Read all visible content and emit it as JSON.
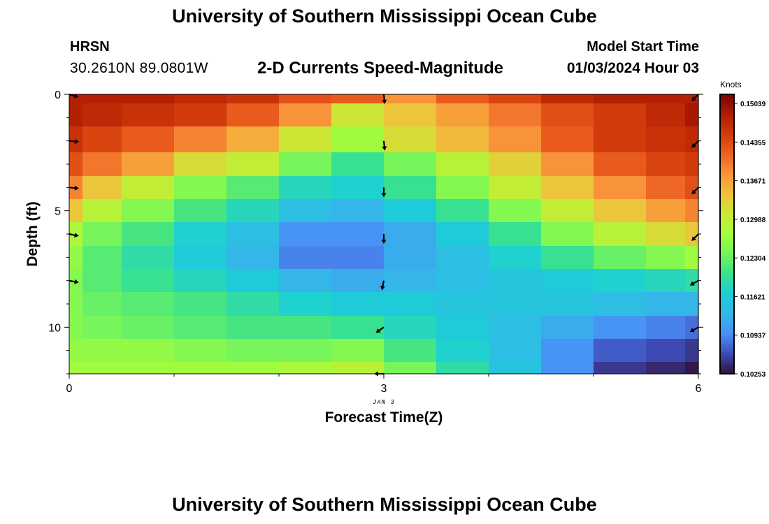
{
  "header": {
    "title": "University of Southern Mississippi Ocean Cube",
    "station": "HRSN",
    "coordinates": "30.2610N  89.0801W",
    "subtitle": "2-D Currents Speed-Magnitude",
    "model_start_label": "Model Start Time",
    "model_start_value": "01/03/2024 Hour 03"
  },
  "footer": {
    "title": "University of Southern Mississippi Ocean Cube"
  },
  "chart_data": {
    "type": "heatmap",
    "title": "2-D Currents Speed-Magnitude",
    "xlabel": "Forecast Time(Z)",
    "ylabel": "Depth (ft)",
    "x_ticks": [
      "0",
      "3",
      "6"
    ],
    "x_tick_values": [
      0,
      3,
      6
    ],
    "x_sublabel": "JAN 3",
    "y_ticks": [
      "0",
      "5",
      "10"
    ],
    "y_tick_values": [
      0,
      5,
      10
    ],
    "xlim": [
      0,
      6
    ],
    "ylim": [
      0,
      12
    ],
    "colorbar": {
      "label": "Knots",
      "min": 0.10253,
      "max": 0.152,
      "ticks": [
        "0.15039",
        "0.14355",
        "0.13671",
        "0.12988",
        "0.12304",
        "0.11621",
        "0.10937",
        "0.10253"
      ],
      "tick_values": [
        0.15039,
        0.14355,
        0.13671,
        0.12988,
        0.12304,
        0.11621,
        0.10937,
        0.10253
      ]
    },
    "colormap": [
      "#30123b",
      "#3e4ab5",
      "#4a8ff7",
      "#33b8e8",
      "#1ccfd6",
      "#3ae18d",
      "#74f45c",
      "#a4fc3c",
      "#cbe835",
      "#efc23a",
      "#f9953a",
      "#ed6121",
      "#d23b0a",
      "#b01c03",
      "#7a0403"
    ],
    "x_centers": [
      0,
      0.25,
      0.75,
      1.25,
      1.75,
      2.25,
      2.75,
      3.25,
      3.75,
      4.25,
      4.75,
      5.25,
      5.75,
      6
    ],
    "depth_centers": [
      0,
      0.75,
      2,
      3,
      4,
      5,
      6,
      7,
      8,
      9,
      10,
      11,
      12
    ],
    "values": [
      [
        0.148,
        0.148,
        0.148,
        0.147,
        0.146,
        0.143,
        0.142,
        0.138,
        0.142,
        0.144,
        0.147,
        0.148,
        0.148,
        0.148
      ],
      [
        0.148,
        0.147,
        0.146,
        0.145,
        0.142,
        0.138,
        0.131,
        0.134,
        0.137,
        0.14,
        0.143,
        0.145,
        0.147,
        0.149
      ],
      [
        0.146,
        0.144,
        0.142,
        0.139,
        0.136,
        0.131,
        0.127,
        0.132,
        0.135,
        0.138,
        0.142,
        0.145,
        0.146,
        0.147
      ],
      [
        0.143,
        0.14,
        0.137,
        0.132,
        0.13,
        0.124,
        0.12,
        0.124,
        0.129,
        0.133,
        0.138,
        0.142,
        0.144,
        0.145
      ],
      [
        0.139,
        0.134,
        0.13,
        0.125,
        0.122,
        0.118,
        0.117,
        0.12,
        0.125,
        0.13,
        0.134,
        0.138,
        0.141,
        0.143
      ],
      [
        0.134,
        0.129,
        0.125,
        0.121,
        0.118,
        0.114,
        0.113,
        0.116,
        0.12,
        0.125,
        0.13,
        0.134,
        0.137,
        0.139
      ],
      [
        0.128,
        0.124,
        0.121,
        0.117,
        0.114,
        0.11,
        0.11,
        0.112,
        0.116,
        0.12,
        0.125,
        0.129,
        0.132,
        0.134
      ],
      [
        0.126,
        0.122,
        0.119,
        0.116,
        0.113,
        0.109,
        0.109,
        0.112,
        0.114,
        0.117,
        0.12,
        0.123,
        0.125,
        0.127
      ],
      [
        0.125,
        0.122,
        0.12,
        0.118,
        0.116,
        0.113,
        0.112,
        0.113,
        0.114,
        0.115,
        0.116,
        0.117,
        0.118,
        0.119
      ],
      [
        0.125,
        0.123,
        0.122,
        0.121,
        0.119,
        0.117,
        0.116,
        0.116,
        0.115,
        0.115,
        0.115,
        0.114,
        0.113,
        0.113
      ],
      [
        0.125,
        0.124,
        0.123,
        0.122,
        0.121,
        0.121,
        0.12,
        0.118,
        0.116,
        0.114,
        0.112,
        0.11,
        0.109,
        0.108
      ],
      [
        0.126,
        0.126,
        0.126,
        0.125,
        0.124,
        0.124,
        0.125,
        0.121,
        0.117,
        0.114,
        0.11,
        0.107,
        0.106,
        0.105
      ],
      [
        0.127,
        0.127,
        0.127,
        0.127,
        0.127,
        0.128,
        0.129,
        0.124,
        0.119,
        0.115,
        0.11,
        0.105,
        0.104,
        0.103
      ]
    ],
    "vectors": [
      {
        "time": 0,
        "depth": 0,
        "u": 1,
        "v": 0.3
      },
      {
        "time": 0,
        "depth": 2,
        "u": 1,
        "v": 0.1
      },
      {
        "time": 0,
        "depth": 4,
        "u": 1,
        "v": 0.1
      },
      {
        "time": 0,
        "depth": 6,
        "u": 1,
        "v": 0.2
      },
      {
        "time": 0,
        "depth": 8,
        "u": 1,
        "v": 0.2
      },
      {
        "time": 3,
        "depth": 0,
        "u": 0.1,
        "v": 1
      },
      {
        "time": 3,
        "depth": 2,
        "u": 0.1,
        "v": 1
      },
      {
        "time": 3,
        "depth": 4,
        "u": 0,
        "v": 1
      },
      {
        "time": 3,
        "depth": 6,
        "u": 0,
        "v": 1
      },
      {
        "time": 3,
        "depth": 8,
        "u": -0.2,
        "v": 1
      },
      {
        "time": 3,
        "depth": 10,
        "u": -1,
        "v": 0.7
      },
      {
        "time": 3,
        "depth": 12,
        "u": -1,
        "v": 0
      },
      {
        "time": 6,
        "depth": 0,
        "u": -0.7,
        "v": 0.7
      },
      {
        "time": 6,
        "depth": 2,
        "u": -0.7,
        "v": 0.7
      },
      {
        "time": 6,
        "depth": 4,
        "u": -0.7,
        "v": 0.7
      },
      {
        "time": 6,
        "depth": 6,
        "u": -0.7,
        "v": 0.7
      },
      {
        "time": 6,
        "depth": 8,
        "u": -0.9,
        "v": 0.5
      },
      {
        "time": 6,
        "depth": 10,
        "u": -0.9,
        "v": 0.5
      }
    ]
  }
}
